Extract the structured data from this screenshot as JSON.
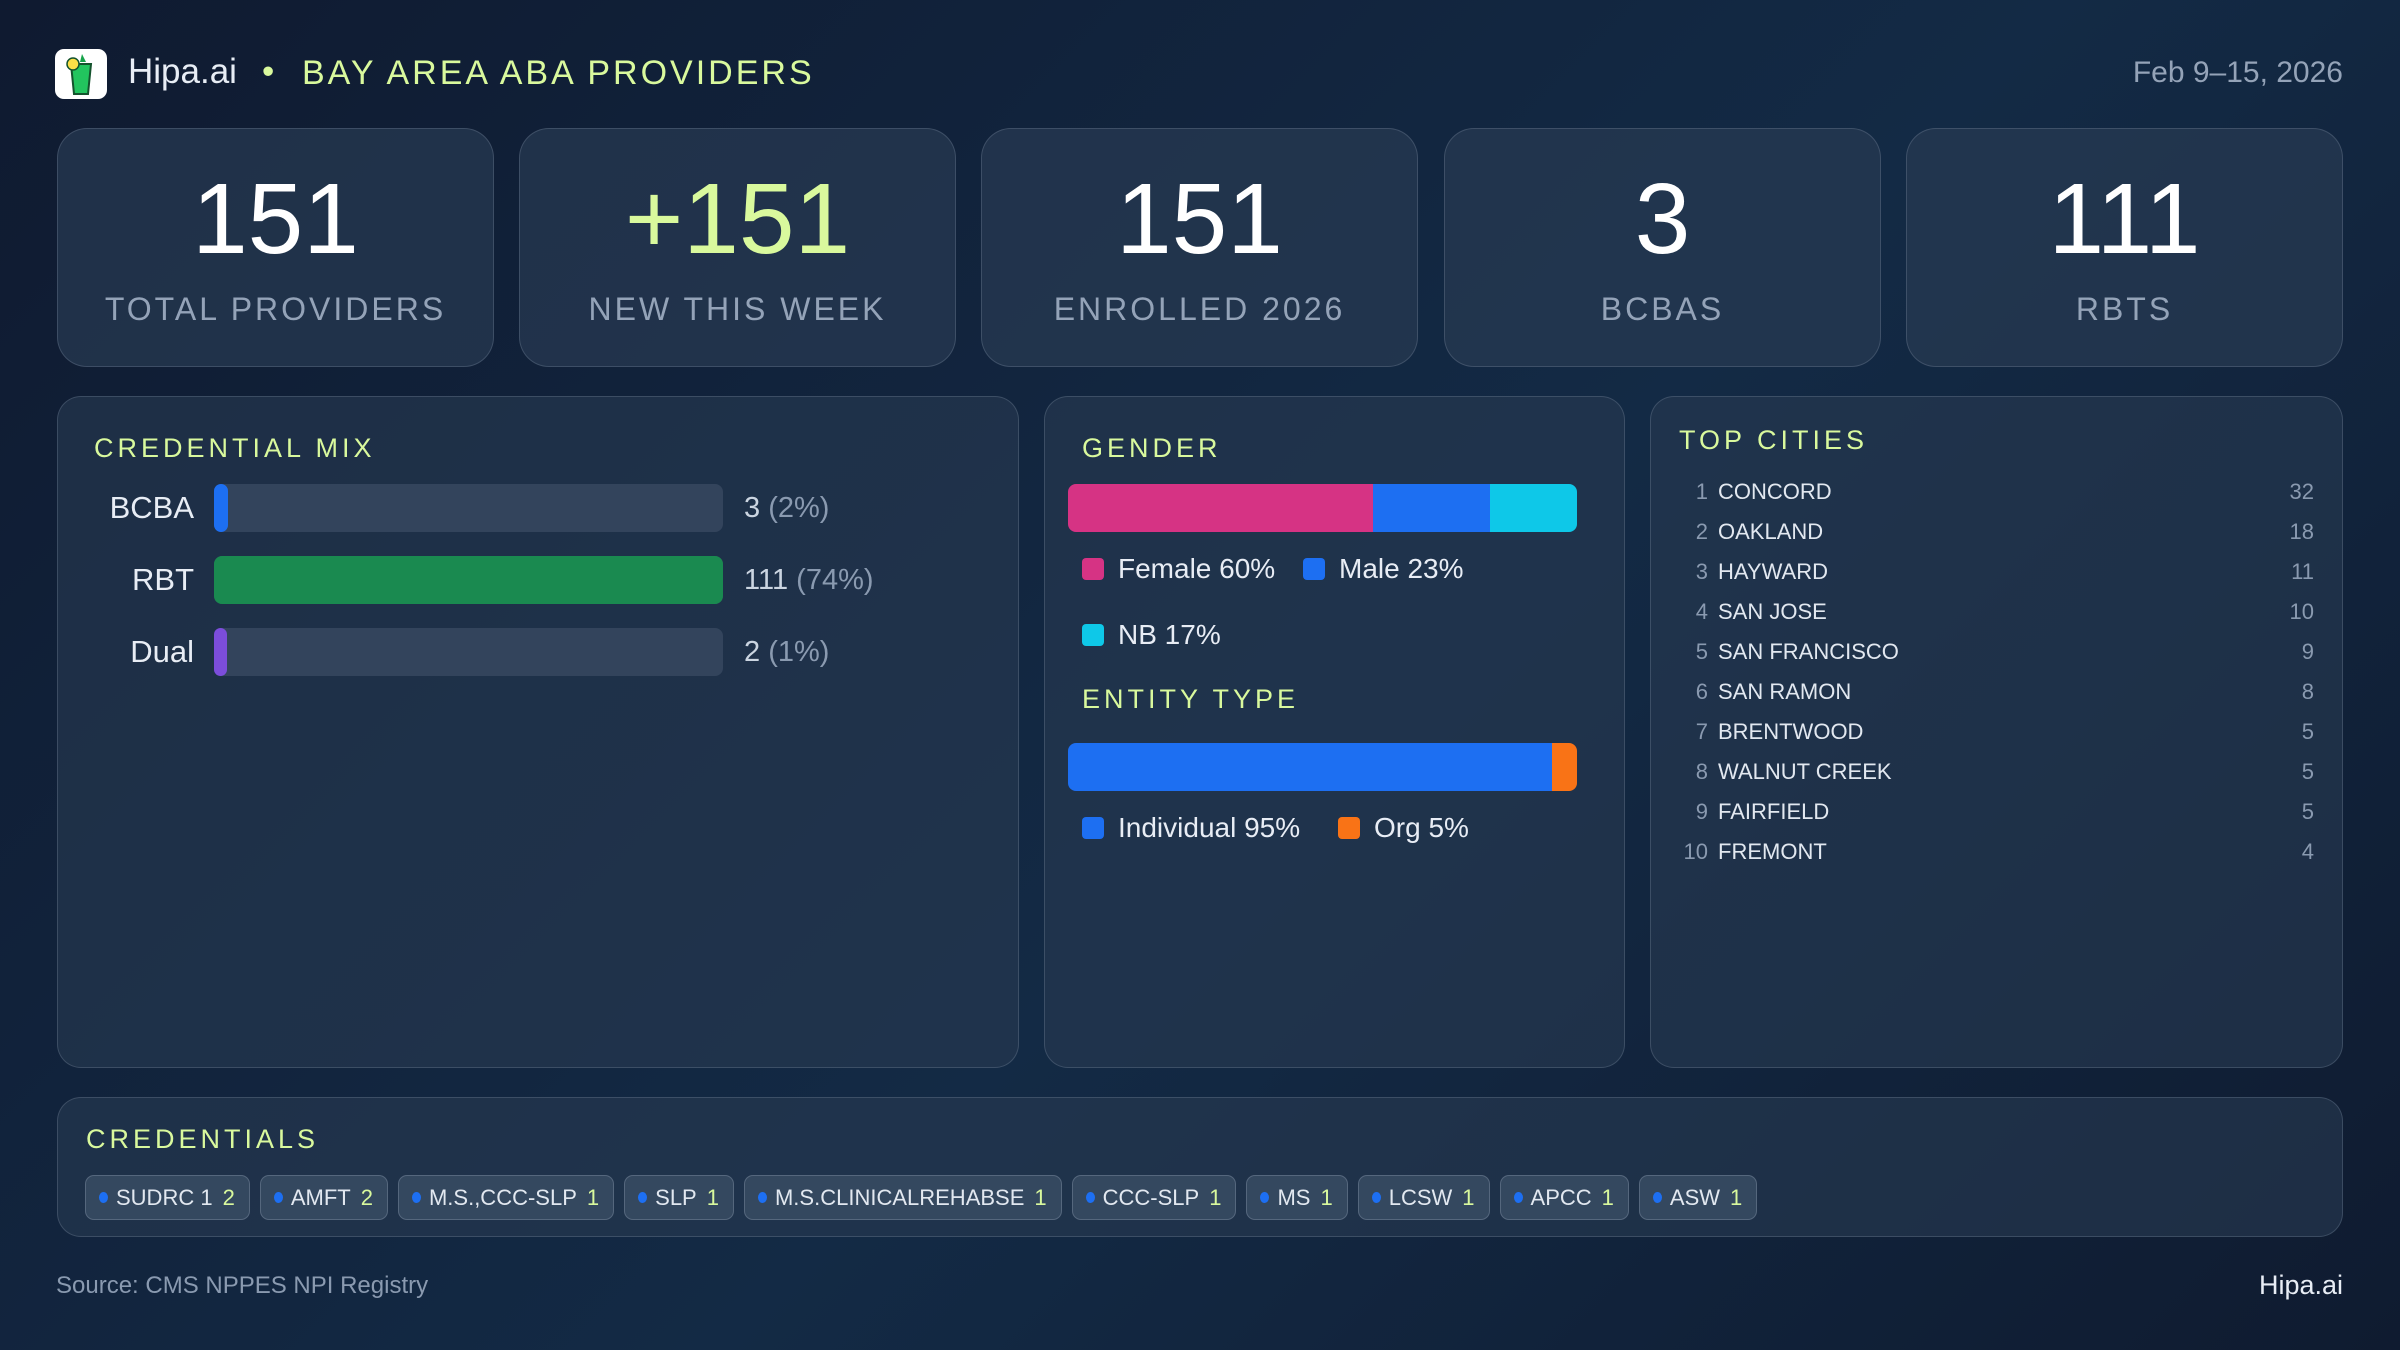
{
  "header": {
    "brand": "Hipa.ai",
    "separator": "•",
    "title": "BAY AREA ABA PROVIDERS",
    "date": "Feb 9–15, 2026"
  },
  "stats": [
    {
      "value": "151",
      "label": "TOTAL PROVIDERS"
    },
    {
      "value": "+151",
      "label": "NEW THIS WEEK"
    },
    {
      "value": "151",
      "label": "ENROLLED 2026"
    },
    {
      "value": "3",
      "label": "BCBAS"
    },
    {
      "value": "111",
      "label": "RBTS"
    }
  ],
  "credential_mix": {
    "title": "CREDENTIAL MIX",
    "rows": [
      {
        "label": "BCBA",
        "value": "3",
        "pct": "(2%)",
        "count": 3,
        "color": "#1d6ff2"
      },
      {
        "label": "RBT",
        "value": "111",
        "pct": "(74%)",
        "count": 111,
        "color": "#1a8a50"
      },
      {
        "label": "Dual",
        "value": "2",
        "pct": "(1%)",
        "count": 2,
        "color": "#7c4ddb"
      }
    ]
  },
  "gender": {
    "title": "GENDER",
    "segments": [
      {
        "label": "Female 60%",
        "percent": 60,
        "color": "#d63384"
      },
      {
        "label": "Male 23%",
        "percent": 23,
        "color": "#1d6ff2"
      },
      {
        "label": "NB 17%",
        "percent": 17,
        "color": "#0ec8e8"
      }
    ]
  },
  "entity": {
    "title": "ENTITY TYPE",
    "segments": [
      {
        "label": "Individual 95%",
        "percent": 95,
        "color": "#1d6ff2"
      },
      {
        "label": "Org 5%",
        "percent": 5,
        "color": "#f97316"
      }
    ]
  },
  "cities": {
    "title": "TOP CITIES",
    "items": [
      {
        "rank": "1",
        "name": "CONCORD",
        "count": "32"
      },
      {
        "rank": "2",
        "name": "OAKLAND",
        "count": "18"
      },
      {
        "rank": "3",
        "name": "HAYWARD",
        "count": "11"
      },
      {
        "rank": "4",
        "name": "SAN JOSE",
        "count": "10"
      },
      {
        "rank": "5",
        "name": "SAN FRANCISCO",
        "count": "9"
      },
      {
        "rank": "6",
        "name": "SAN RAMON",
        "count": "8"
      },
      {
        "rank": "7",
        "name": "BRENTWOOD",
        "count": "5"
      },
      {
        "rank": "8",
        "name": "WALNUT CREEK",
        "count": "5"
      },
      {
        "rank": "9",
        "name": "FAIRFIELD",
        "count": "5"
      },
      {
        "rank": "10",
        "name": "FREMONT",
        "count": "4"
      }
    ]
  },
  "credentials": {
    "title": "CREDENTIALS",
    "chips": [
      {
        "name": "SUDRC 1",
        "count": "2"
      },
      {
        "name": "AMFT",
        "count": "2"
      },
      {
        "name": "M.S.,CCC-SLP",
        "count": "1"
      },
      {
        "name": "SLP",
        "count": "1"
      },
      {
        "name": "M.S.CLINICALREHABSE",
        "count": "1"
      },
      {
        "name": "CCC-SLP",
        "count": "1"
      },
      {
        "name": "MS",
        "count": "1"
      },
      {
        "name": "LCSW",
        "count": "1"
      },
      {
        "name": "APCC",
        "count": "1"
      },
      {
        "name": "ASW",
        "count": "1"
      }
    ]
  },
  "footer": {
    "source": "Source: CMS NPPES NPI Registry",
    "brand": "Hipa.ai"
  }
}
